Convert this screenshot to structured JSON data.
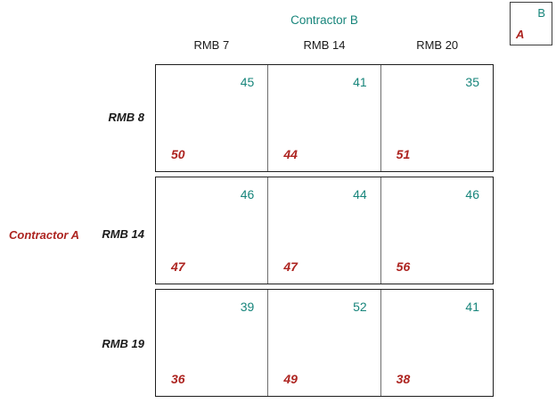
{
  "legend": {
    "b_label": "B",
    "a_label": "A"
  },
  "players": {
    "column_player": "Contractor B",
    "row_player": "Contractor A"
  },
  "columns": [
    {
      "label": "RMB 7"
    },
    {
      "label": "RMB 14"
    },
    {
      "label": "RMB 20"
    }
  ],
  "rows": [
    {
      "label": "RMB 8",
      "cells": [
        {
          "b": "45",
          "a": "50"
        },
        {
          "b": "41",
          "a": "44"
        },
        {
          "b": "35",
          "a": "51"
        }
      ]
    },
    {
      "label": "RMB 14",
      "cells": [
        {
          "b": "46",
          "a": "47"
        },
        {
          "b": "44",
          "a": "47"
        },
        {
          "b": "46",
          "a": "56"
        }
      ]
    },
    {
      "label": "RMB 19",
      "cells": [
        {
          "b": "39",
          "a": "36"
        },
        {
          "b": "52",
          "a": "49"
        },
        {
          "b": "41",
          "a": "38"
        }
      ]
    }
  ],
  "colors": {
    "player_a_red": "#ad2420",
    "player_b_teal": "#17857b",
    "grid_border": "#1f1f1f",
    "cell_divider": "#6e6e6e"
  }
}
